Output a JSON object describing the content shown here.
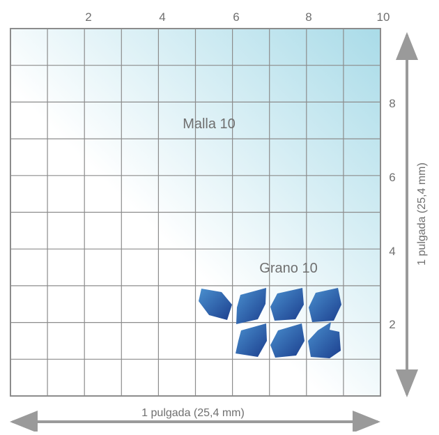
{
  "top_ticks": [
    "2",
    "4",
    "6",
    "8",
    "10"
  ],
  "right_ticks": [
    "8",
    "6",
    "4",
    "2"
  ],
  "mesh_label": "Malla 10",
  "grain_label": "Grano 10",
  "horizontal_dimension": "1 pulgada (25,4 mm)",
  "vertical_dimension": "1 pulgada (25,4 mm)",
  "colors": {
    "grid_line": "#8c8c8c",
    "gradient_light": "#ffffff",
    "gradient_dark": "#a9dbe8",
    "grain_dark": "#1c3f8e",
    "grain_light": "#4a90cf",
    "text": "#6f6f6f",
    "arrow": "#9a9a9a"
  },
  "grains_count": 7
}
